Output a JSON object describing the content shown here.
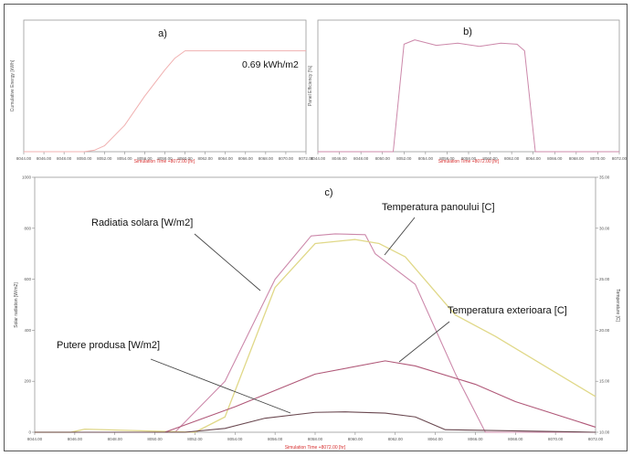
{
  "colors": {
    "radiation": "#cc88aa",
    "panel_temp": "#e0d888",
    "ext_temp": "#b05878",
    "power": "#6a4850",
    "pinkline": "#f0b0b0",
    "red_axis_label": "#d83030",
    "leader": "#444444"
  },
  "chart_data": [
    {
      "id": "a",
      "type": "line",
      "panel_label": "a)",
      "annotation": "0.69 kWh/m2",
      "xlabel": "Simulation Time +8072.00 [hr]",
      "ylabel": "Cumulative Energy [kWh]",
      "xlim": [
        8044,
        8072
      ],
      "ylim": [
        0,
        0.9
      ],
      "x_ticks": [
        "8044.00",
        "8046.00",
        "8048.00",
        "8050.00",
        "8052.00",
        "8054.00",
        "8056.00",
        "8058.00",
        "8060.00",
        "8062.00",
        "8064.00",
        "8066.00",
        "8068.00",
        "8070.00",
        "8072.00"
      ],
      "series": [
        {
          "x": [
            8044,
            8050,
            8051,
            8052,
            8054,
            8056,
            8058,
            8059,
            8060,
            8072
          ],
          "y": [
            0,
            0,
            0.01,
            0.04,
            0.18,
            0.38,
            0.56,
            0.64,
            0.69,
            0.69
          ]
        }
      ]
    },
    {
      "id": "b",
      "type": "line",
      "panel_label": "b)",
      "xlabel": "Simulation Time +8072.00 [hr]",
      "ylabel": "Panel Efficiency [%]",
      "xlim": [
        8044,
        8072
      ],
      "ylim": [
        0,
        12
      ],
      "x_ticks": [
        "8044.00",
        "8046.00",
        "8048.00",
        "8050.00",
        "8052.00",
        "8054.00",
        "8056.00",
        "8058.00",
        "8060.00",
        "8062.00",
        "8064.00",
        "8066.00",
        "8068.00",
        "8070.00",
        "8072.00"
      ],
      "series": [
        {
          "x": [
            8044,
            8051.0,
            8052.0,
            8053.0,
            8055,
            8057,
            8059,
            8061,
            8062.5,
            8063.2,
            8064.2,
            8072
          ],
          "y": [
            0,
            0,
            9.8,
            10.2,
            9.7,
            9.9,
            9.6,
            9.9,
            9.8,
            9.2,
            0,
            0
          ]
        }
      ]
    },
    {
      "id": "c",
      "type": "line",
      "panel_label": "c)",
      "xlabel": "Simulation Time +8072.00 [hr]",
      "ylabel_left": "Solar radiation [W/m2]",
      "ylabel_right": "Temperature [C]",
      "xlim": [
        8044,
        8072
      ],
      "ylim_left": [
        0,
        1000
      ],
      "ylim_right": [
        10,
        35
      ],
      "x_ticks": [
        "8044.00",
        "8046.00",
        "8048.00",
        "8050.00",
        "8052.00",
        "8054.00",
        "8056.00",
        "8058.00",
        "8060.00",
        "8062.00",
        "8064.00",
        "8066.00",
        "8068.00",
        "8070.00",
        "8072.00"
      ],
      "y_ticks_left": [
        "0",
        "200",
        "400",
        "600",
        "800",
        "1000"
      ],
      "y_ticks_right": [
        "10.00",
        "15.00",
        "20.00",
        "25.00",
        "30.00",
        "35.00"
      ],
      "annotations": [
        "Radiatia solara [W/m2]",
        "Temperatura panoului [C]",
        "Temperatura exterioara [C]",
        "Putere produsa [W/m2]"
      ],
      "series": [
        {
          "name": "Radiatia solara [W/m2]",
          "axis": "left",
          "x": [
            8044,
            8051.0,
            8053.5,
            8056.0,
            8057.8,
            8059.0,
            8060.5,
            8061.0,
            8063.0,
            8065.0,
            8066.5,
            8072
          ],
          "y": [
            0,
            0,
            200,
            600,
            770,
            778,
            775,
            700,
            580,
            230,
            0,
            0
          ]
        },
        {
          "name": "Temperatura panoului [C]",
          "axis": "right",
          "x": [
            8044,
            8045.8,
            8046.5,
            8052.0,
            8053.5,
            8056.0,
            8058.0,
            8060.0,
            8061.2,
            8062.5,
            8065.0,
            8067.0,
            8072
          ],
          "y": [
            10,
            10,
            10.3,
            10,
            11.5,
            24.2,
            28.5,
            28.9,
            28.5,
            27.2,
            21.5,
            19.4,
            13.5
          ]
        },
        {
          "name": "Temperatura exterioara [C]",
          "axis": "right",
          "x": [
            8044,
            8050.5,
            8054.0,
            8058.0,
            8061.5,
            8063.0,
            8066.0,
            8068.0,
            8072
          ],
          "y": [
            10,
            10,
            12.5,
            15.7,
            17.0,
            16.5,
            14.7,
            13.0,
            10.5
          ]
        },
        {
          "name": "Putere produsa [W/m2]",
          "axis": "left",
          "x": [
            8044,
            8051.5,
            8053.5,
            8055.5,
            8058.0,
            8059.5,
            8061.5,
            8063.0,
            8064.5,
            8072
          ],
          "y": [
            0,
            0,
            15,
            55,
            78,
            80,
            75,
            60,
            10,
            0
          ]
        }
      ]
    }
  ]
}
